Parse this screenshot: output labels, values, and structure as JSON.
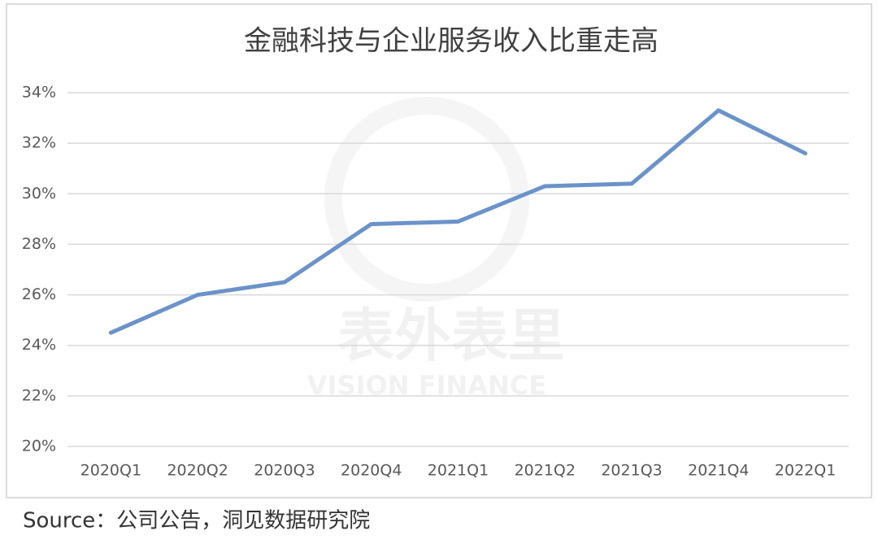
{
  "chart_data": {
    "type": "line",
    "title": "金融科技与企业服务收入比重走高",
    "categories": [
      "2020Q1",
      "2020Q2",
      "2020Q3",
      "2020Q4",
      "2021Q1",
      "2021Q2",
      "2021Q3",
      "2021Q4",
      "2022Q1"
    ],
    "values": [
      24.5,
      26.0,
      26.5,
      28.8,
      28.9,
      30.3,
      30.4,
      33.3,
      31.6
    ],
    "color": "#6b93c9",
    "ylim": [
      20,
      34
    ],
    "yticks": [
      {
        "value": 20,
        "label": "20%"
      },
      {
        "value": 22,
        "label": "22%"
      },
      {
        "value": 24,
        "label": "24%"
      },
      {
        "value": 26,
        "label": "26%"
      },
      {
        "value": 28,
        "label": "28%"
      },
      {
        "value": 30,
        "label": "30%"
      },
      {
        "value": 32,
        "label": "32%"
      },
      {
        "value": 34,
        "label": "34%"
      }
    ],
    "grid": true,
    "watermark": [
      "表外表里",
      "VISION FINANCE"
    ],
    "source": "Source：公司公告，洞见数据研究院"
  }
}
